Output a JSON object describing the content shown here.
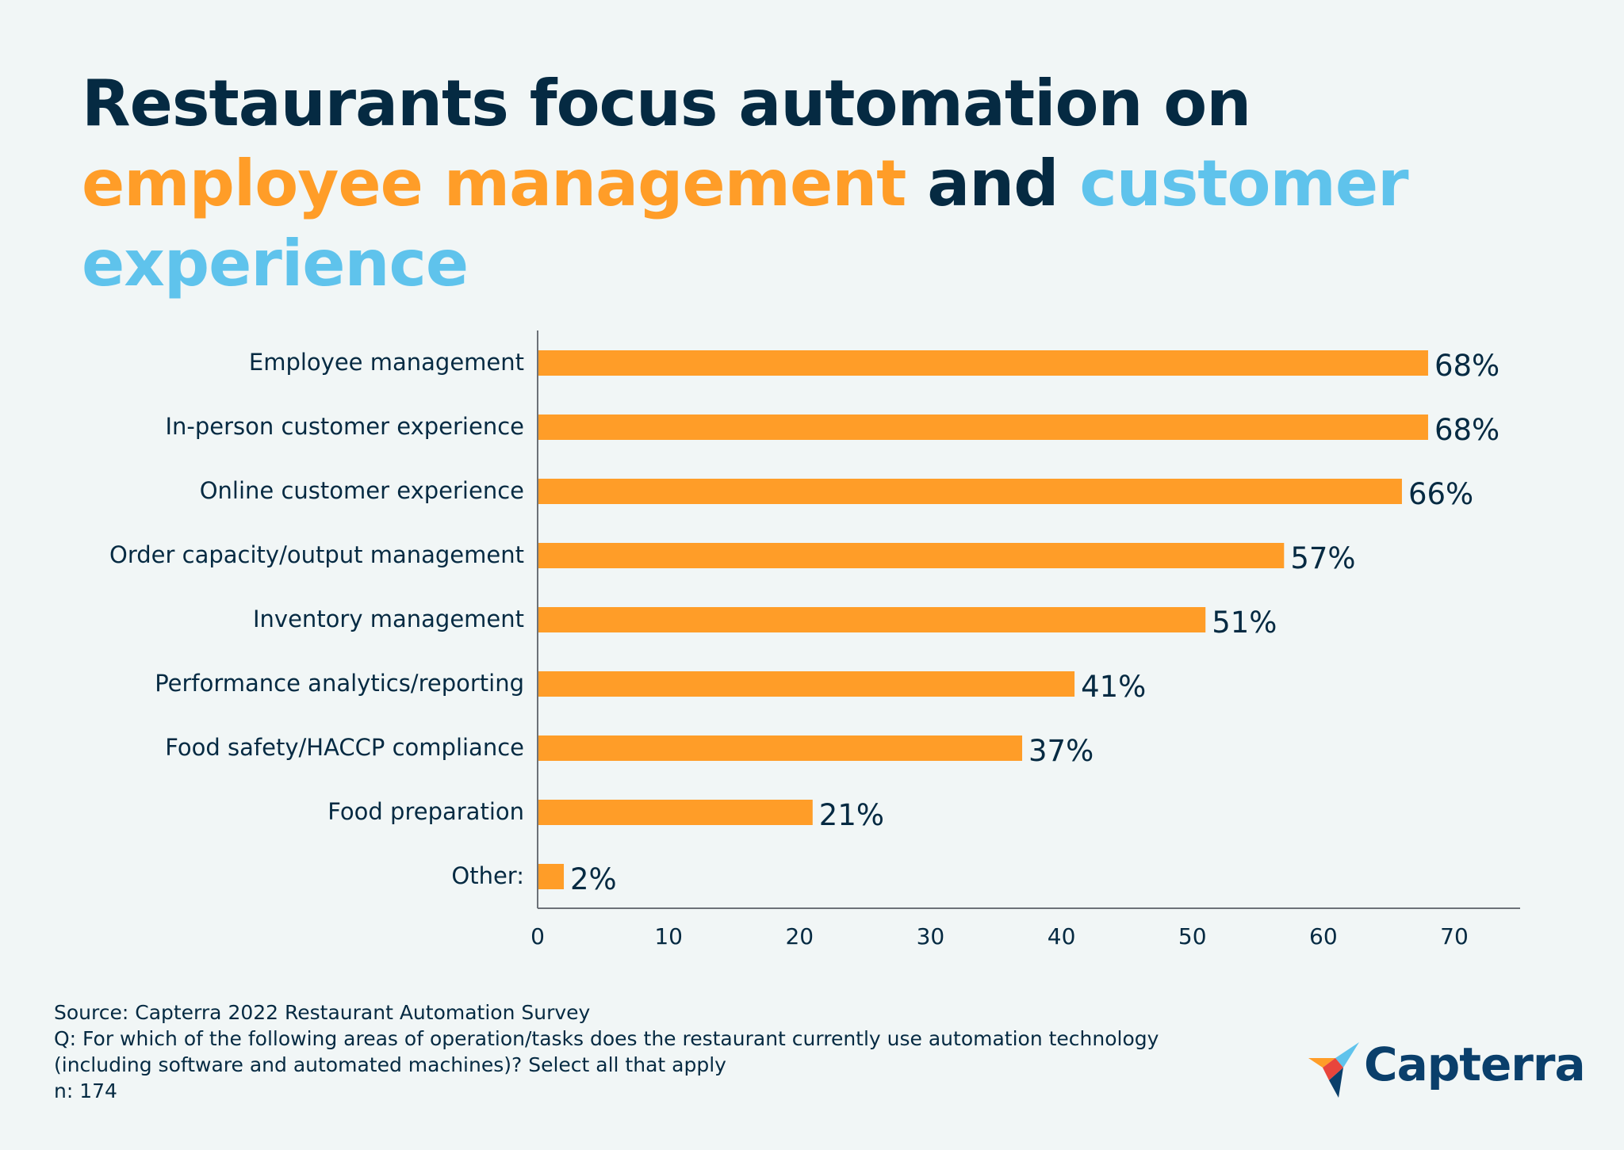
{
  "title": {
    "part1": "Restaurants focus automation on ",
    "highlight1": "employee management",
    "part2": " and ",
    "highlight2": "customer experience"
  },
  "colors": {
    "title": "#052a42",
    "highlight1": "#ff9d28",
    "highlight2": "#5fc3ec",
    "bar": "#ff9d28",
    "text": "#052a42",
    "background": "#f1f6f6"
  },
  "chart_data": {
    "type": "bar",
    "orientation": "horizontal",
    "categories": [
      "Employee management",
      "In-person customer experience",
      "Online customer experience",
      "Order capacity/output management",
      "Inventory management",
      "Performance analytics/reporting",
      "Food safety/HACCP compliance",
      "Food preparation",
      "Other:"
    ],
    "values": [
      68,
      68,
      66,
      57,
      51,
      41,
      37,
      21,
      2
    ],
    "value_labels": [
      "68%",
      "68%",
      "66%",
      "57%",
      "51%",
      "41%",
      "37%",
      "21%",
      "2%"
    ],
    "xticks": [
      0,
      10,
      20,
      30,
      40,
      50,
      60,
      70
    ],
    "xlim": [
      0,
      75
    ],
    "grid": false
  },
  "footer": {
    "source": "Source: Capterra 2022 Restaurant Automation Survey",
    "question_line1": "Q: For which of the following areas of operation/tasks does the restaurant currently use automation technology",
    "question_line2": "(including software and automated machines)? Select all that apply",
    "n": "n: 174"
  },
  "logo": {
    "text": "Capterra",
    "icon": "capterra-arrow-icon"
  }
}
